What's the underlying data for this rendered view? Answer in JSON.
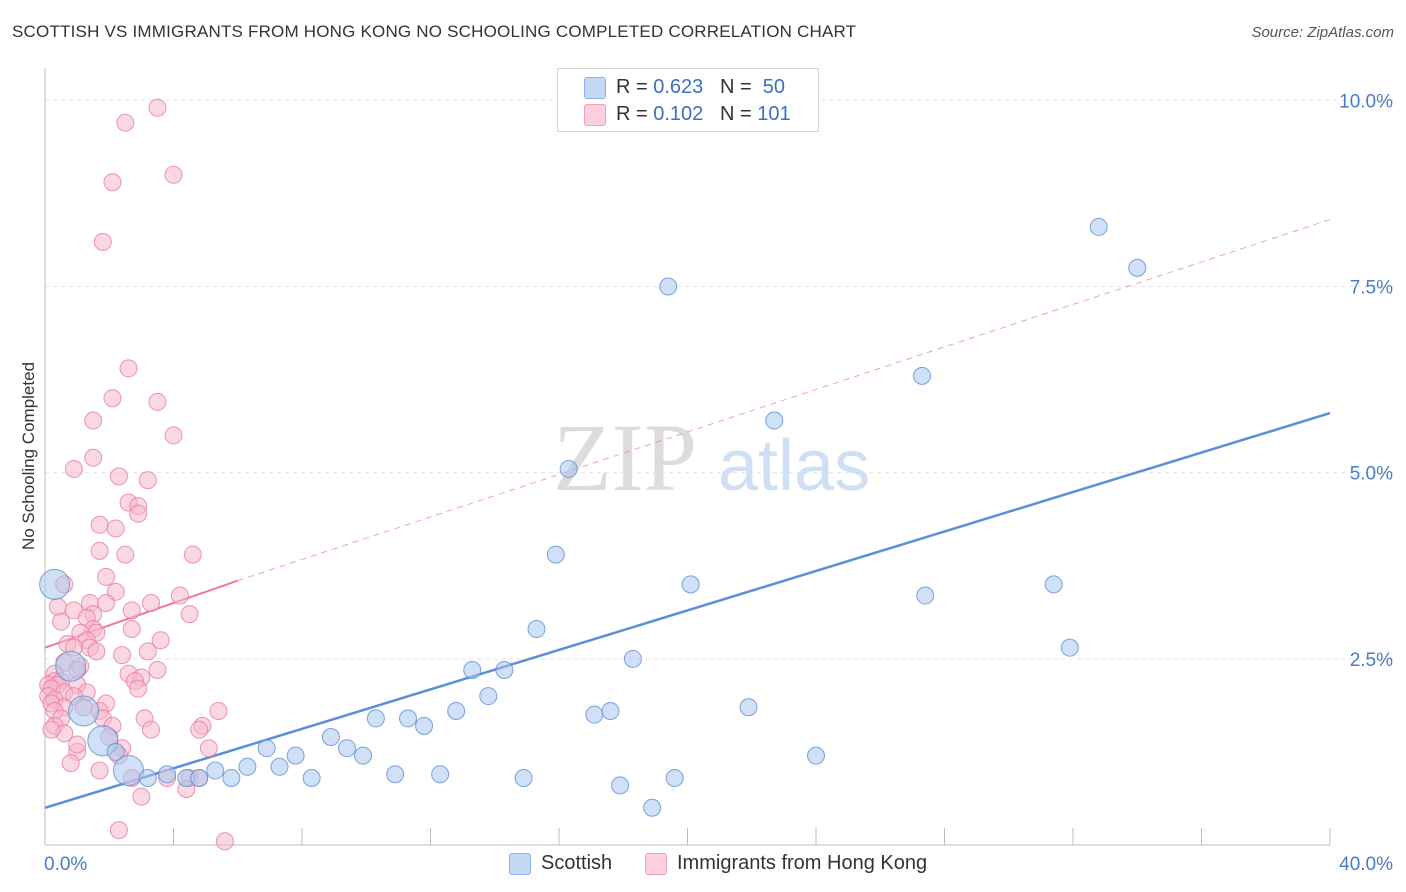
{
  "header": {
    "title": "SCOTTISH VS IMMIGRANTS FROM HONG KONG NO SCHOOLING COMPLETED CORRELATION CHART",
    "source": "Source: ZipAtlas.com"
  },
  "legend": {
    "rows": [
      {
        "r_label": "R =",
        "r_value": "0.623",
        "n_label": "N =",
        "n_value": "50",
        "color": "#a9c6ee"
      },
      {
        "r_label": "R =",
        "r_value": "0.102",
        "n_label": "N =",
        "n_value": "101",
        "color": "#f5b8cb"
      }
    ]
  },
  "bottom_legend": {
    "items": [
      {
        "label": "Scottish",
        "color": "#a9c6ee"
      },
      {
        "label": "Immigrants from Hong Kong",
        "color": "#f5b8cb"
      }
    ]
  },
  "watermark": {
    "zip": "ZIP",
    "atlas": "atlas"
  },
  "chart_data": {
    "type": "scatter",
    "ylabel": "No Schooling Completed",
    "xlim": [
      0,
      40
    ],
    "ylim": [
      0,
      10.3
    ],
    "x_tick_labels": [
      "0.0%",
      "40.0%"
    ],
    "y_ticks": [
      2.5,
      5.0,
      7.5,
      10.0
    ],
    "y_tick_labels": [
      "2.5%",
      "5.0%",
      "7.5%",
      "10.0%"
    ],
    "grid": true,
    "legend_position": "top-center",
    "series": [
      {
        "name": "Scottish",
        "color": "#5b8fd6",
        "fill": "#a9c6ee",
        "trend": {
          "x": [
            0,
            40
          ],
          "y": [
            0.5,
            5.8
          ],
          "style": "solid"
        },
        "points": [
          {
            "x": 0.3,
            "y": 3.5,
            "big": true
          },
          {
            "x": 0.8,
            "y": 2.4,
            "big": true
          },
          {
            "x": 1.2,
            "y": 1.8,
            "big": true
          },
          {
            "x": 1.8,
            "y": 1.4,
            "big": true
          },
          {
            "x": 2.6,
            "y": 1.0,
            "big": true
          },
          {
            "x": 3.2,
            "y": 0.9
          },
          {
            "x": 3.8,
            "y": 0.95
          },
          {
            "x": 4.4,
            "y": 0.9
          },
          {
            "x": 4.8,
            "y": 0.9
          },
          {
            "x": 5.3,
            "y": 1.0
          },
          {
            "x": 5.8,
            "y": 0.9
          },
          {
            "x": 6.3,
            "y": 1.05
          },
          {
            "x": 6.9,
            "y": 1.3
          },
          {
            "x": 7.3,
            "y": 1.05
          },
          {
            "x": 7.8,
            "y": 1.2
          },
          {
            "x": 8.3,
            "y": 0.9
          },
          {
            "x": 8.9,
            "y": 1.45
          },
          {
            "x": 9.4,
            "y": 1.3
          },
          {
            "x": 9.9,
            "y": 1.2
          },
          {
            "x": 10.3,
            "y": 1.7
          },
          {
            "x": 10.9,
            "y": 0.95
          },
          {
            "x": 11.3,
            "y": 1.7
          },
          {
            "x": 11.8,
            "y": 1.6
          },
          {
            "x": 12.3,
            "y": 0.95
          },
          {
            "x": 12.8,
            "y": 1.8
          },
          {
            "x": 13.3,
            "y": 2.35
          },
          {
            "x": 13.8,
            "y": 2.0
          },
          {
            "x": 14.3,
            "y": 2.35
          },
          {
            "x": 14.9,
            "y": 0.9
          },
          {
            "x": 15.3,
            "y": 2.9
          },
          {
            "x": 15.9,
            "y": 3.9
          },
          {
            "x": 16.3,
            "y": 5.05
          },
          {
            "x": 17.1,
            "y": 1.75
          },
          {
            "x": 17.6,
            "y": 1.8
          },
          {
            "x": 17.9,
            "y": 0.8
          },
          {
            "x": 18.3,
            "y": 2.5
          },
          {
            "x": 18.9,
            "y": 0.5
          },
          {
            "x": 19.4,
            "y": 7.5
          },
          {
            "x": 19.6,
            "y": 0.9
          },
          {
            "x": 20.1,
            "y": 3.5
          },
          {
            "x": 21.9,
            "y": 1.85
          },
          {
            "x": 22.7,
            "y": 5.7
          },
          {
            "x": 24.0,
            "y": 1.2
          },
          {
            "x": 27.3,
            "y": 6.3
          },
          {
            "x": 27.4,
            "y": 3.35
          },
          {
            "x": 31.4,
            "y": 3.5
          },
          {
            "x": 31.9,
            "y": 2.65
          },
          {
            "x": 32.8,
            "y": 8.3
          },
          {
            "x": 34.0,
            "y": 7.75
          },
          {
            "x": 2.2,
            "y": 1.25
          }
        ]
      },
      {
        "name": "Immigrants from Hong Kong",
        "color": "#e87aa0",
        "fill": "#f5b8cb",
        "trend": {
          "x": [
            0,
            6
          ],
          "y": [
            2.65,
            3.55
          ],
          "style": "solid",
          "extended": {
            "x": [
              6,
              40
            ],
            "y": [
              3.55,
              8.4
            ],
            "style": "dashed"
          }
        },
        "points": [
          {
            "x": 3.5,
            "y": 9.9
          },
          {
            "x": 2.5,
            "y": 9.7
          },
          {
            "x": 4.0,
            "y": 9.0
          },
          {
            "x": 2.1,
            "y": 8.9
          },
          {
            "x": 1.8,
            "y": 8.1
          },
          {
            "x": 2.6,
            "y": 6.4
          },
          {
            "x": 2.1,
            "y": 6.0
          },
          {
            "x": 3.5,
            "y": 5.95
          },
          {
            "x": 1.5,
            "y": 5.7
          },
          {
            "x": 4.0,
            "y": 5.5
          },
          {
            "x": 1.5,
            "y": 5.2
          },
          {
            "x": 0.9,
            "y": 5.05
          },
          {
            "x": 2.3,
            "y": 4.95
          },
          {
            "x": 3.2,
            "y": 4.9
          },
          {
            "x": 2.6,
            "y": 4.6
          },
          {
            "x": 2.9,
            "y": 4.55
          },
          {
            "x": 2.9,
            "y": 4.45
          },
          {
            "x": 1.7,
            "y": 4.3
          },
          {
            "x": 2.2,
            "y": 4.25
          },
          {
            "x": 1.7,
            "y": 3.95
          },
          {
            "x": 2.5,
            "y": 3.9
          },
          {
            "x": 4.6,
            "y": 3.9
          },
          {
            "x": 1.9,
            "y": 3.6
          },
          {
            "x": 0.6,
            "y": 3.5
          },
          {
            "x": 2.2,
            "y": 3.4
          },
          {
            "x": 4.2,
            "y": 3.35
          },
          {
            "x": 0.4,
            "y": 3.2
          },
          {
            "x": 1.4,
            "y": 3.25
          },
          {
            "x": 1.9,
            "y": 3.25
          },
          {
            "x": 3.3,
            "y": 3.25
          },
          {
            "x": 0.9,
            "y": 3.15
          },
          {
            "x": 1.5,
            "y": 3.1
          },
          {
            "x": 2.7,
            "y": 3.15
          },
          {
            "x": 4.5,
            "y": 3.1
          },
          {
            "x": 1.3,
            "y": 3.05
          },
          {
            "x": 0.5,
            "y": 3.0
          },
          {
            "x": 1.5,
            "y": 2.9
          },
          {
            "x": 2.7,
            "y": 2.9
          },
          {
            "x": 1.1,
            "y": 2.85
          },
          {
            "x": 1.6,
            "y": 2.85
          },
          {
            "x": 1.3,
            "y": 2.75
          },
          {
            "x": 3.6,
            "y": 2.75
          },
          {
            "x": 0.7,
            "y": 2.7
          },
          {
            "x": 0.9,
            "y": 2.65
          },
          {
            "x": 1.4,
            "y": 2.65
          },
          {
            "x": 1.6,
            "y": 2.6
          },
          {
            "x": 3.2,
            "y": 2.6
          },
          {
            "x": 2.4,
            "y": 2.55
          },
          {
            "x": 0.6,
            "y": 2.45
          },
          {
            "x": 1.1,
            "y": 2.4
          },
          {
            "x": 1.0,
            "y": 2.35
          },
          {
            "x": 3.5,
            "y": 2.35
          },
          {
            "x": 0.3,
            "y": 2.3
          },
          {
            "x": 2.6,
            "y": 2.3
          },
          {
            "x": 3.0,
            "y": 2.25
          },
          {
            "x": 0.3,
            "y": 2.2
          },
          {
            "x": 0.5,
            "y": 2.2
          },
          {
            "x": 0.1,
            "y": 2.15
          },
          {
            "x": 0.4,
            "y": 2.15
          },
          {
            "x": 1.0,
            "y": 2.15
          },
          {
            "x": 2.8,
            "y": 2.2
          },
          {
            "x": 0.2,
            "y": 2.1
          },
          {
            "x": 0.6,
            "y": 2.05
          },
          {
            "x": 1.3,
            "y": 2.05
          },
          {
            "x": 2.9,
            "y": 2.1
          },
          {
            "x": 0.1,
            "y": 2.0
          },
          {
            "x": 0.9,
            "y": 2.0
          },
          {
            "x": 0.3,
            "y": 1.95
          },
          {
            "x": 1.9,
            "y": 1.9
          },
          {
            "x": 0.2,
            "y": 1.9
          },
          {
            "x": 0.6,
            "y": 1.85
          },
          {
            "x": 1.2,
            "y": 1.85
          },
          {
            "x": 0.3,
            "y": 1.8
          },
          {
            "x": 1.7,
            "y": 1.8
          },
          {
            "x": 5.4,
            "y": 1.8
          },
          {
            "x": 0.5,
            "y": 1.7
          },
          {
            "x": 1.8,
            "y": 1.7
          },
          {
            "x": 3.1,
            "y": 1.7
          },
          {
            "x": 0.3,
            "y": 1.6
          },
          {
            "x": 2.1,
            "y": 1.6
          },
          {
            "x": 4.9,
            "y": 1.6
          },
          {
            "x": 3.3,
            "y": 1.55
          },
          {
            "x": 4.8,
            "y": 1.55
          },
          {
            "x": 0.6,
            "y": 1.5
          },
          {
            "x": 2.4,
            "y": 1.3
          },
          {
            "x": 5.1,
            "y": 1.3
          },
          {
            "x": 1.0,
            "y": 1.25
          },
          {
            "x": 2.3,
            "y": 1.2
          },
          {
            "x": 0.8,
            "y": 1.1
          },
          {
            "x": 1.7,
            "y": 1.0
          },
          {
            "x": 2.7,
            "y": 0.9
          },
          {
            "x": 3.8,
            "y": 0.9
          },
          {
            "x": 4.5,
            "y": 0.9
          },
          {
            "x": 4.8,
            "y": 0.9
          },
          {
            "x": 4.4,
            "y": 0.75
          },
          {
            "x": 3.0,
            "y": 0.65
          },
          {
            "x": 2.3,
            "y": 0.2
          },
          {
            "x": 5.6,
            "y": 0.05
          },
          {
            "x": 0.2,
            "y": 1.55
          },
          {
            "x": 1.0,
            "y": 1.35
          },
          {
            "x": 2.0,
            "y": 1.45
          }
        ]
      }
    ]
  }
}
